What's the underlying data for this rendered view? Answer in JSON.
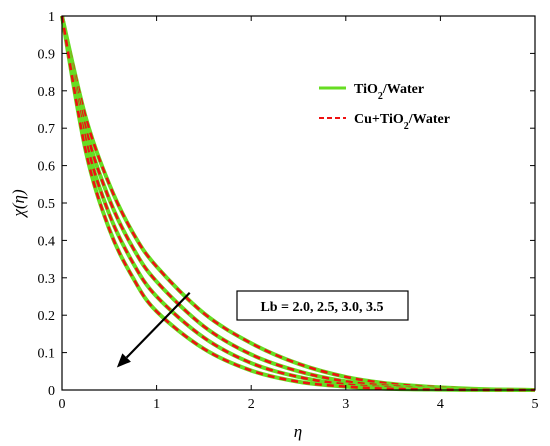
{
  "chart_data": {
    "type": "line",
    "xlabel": "η",
    "ylabel": "χ(η)",
    "xlim": [
      0,
      5
    ],
    "ylim": [
      0,
      1
    ],
    "x_ticks": [
      "0",
      "1",
      "2",
      "3",
      "4",
      "5"
    ],
    "y_ticks": [
      "0",
      "0.1",
      "0.2",
      "0.3",
      "0.4",
      "0.5",
      "0.6",
      "0.7",
      "0.8",
      "0.9",
      "1"
    ],
    "grid": false,
    "legend_position": "top-right",
    "legend": [
      {
        "base": "TiO",
        "sub": "2",
        "rest": "/Water",
        "style": "solid",
        "color": "#66dd22"
      },
      {
        "base": "Cu+TiO",
        "sub": "2",
        "rest": "/Water",
        "style": "dashed",
        "color": "#ee1111"
      }
    ],
    "annotation": "Lb = 2.0, 2.5, 3.0, 3.5",
    "arrow": {
      "from": [
        1.35,
        0.26
      ],
      "to": [
        0.58,
        0.06
      ]
    },
    "x": [
      0,
      0.25,
      0.5,
      0.75,
      1.0,
      1.5,
      2.0,
      2.5,
      3.0,
      3.5,
      4.0,
      4.5,
      5.0
    ],
    "series": [
      {
        "lb": "2.0",
        "values": [
          1.0,
          0.73,
          0.55,
          0.42,
          0.33,
          0.205,
          0.125,
          0.07,
          0.035,
          0.016,
          0.007,
          0.002,
          0.0
        ]
      },
      {
        "lb": "2.5",
        "values": [
          1.0,
          0.7,
          0.51,
          0.38,
          0.29,
          0.17,
          0.095,
          0.05,
          0.023,
          0.01,
          0.004,
          0.001,
          0.0
        ]
      },
      {
        "lb": "3.0",
        "values": [
          1.0,
          0.67,
          0.47,
          0.34,
          0.25,
          0.14,
          0.072,
          0.035,
          0.015,
          0.006,
          0.002,
          0.0005,
          0.0
        ]
      },
      {
        "lb": "3.5",
        "values": [
          1.0,
          0.64,
          0.43,
          0.3,
          0.21,
          0.11,
          0.052,
          0.022,
          0.009,
          0.003,
          0.001,
          0.0002,
          0.0
        ]
      }
    ],
    "colors": {
      "water": "#66dd22",
      "hybrid": "#ee1111"
    }
  }
}
